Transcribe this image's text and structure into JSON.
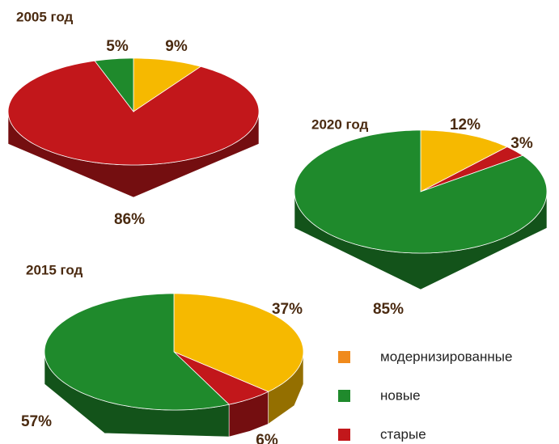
{
  "chart_data": [
    {
      "type": "pie",
      "title": "2005 год",
      "values": [
        9,
        5,
        86
      ],
      "value_labels": [
        "9%",
        "5%",
        "86%"
      ],
      "colors": [
        "#f6b900",
        "#1f8a2c",
        "#c2171b"
      ]
    },
    {
      "type": "pie",
      "title": "2020 год",
      "values": [
        12,
        85,
        3
      ],
      "value_labels": [
        "12%",
        "85%",
        "3%"
      ],
      "colors": [
        "#f6b900",
        "#1f8a2c",
        "#c2171b"
      ]
    },
    {
      "type": "pie",
      "title": "2015 год",
      "values": [
        37,
        57,
        6
      ],
      "value_labels": [
        "37%",
        "57%",
        "6%"
      ],
      "colors": [
        "#f6b900",
        "#1f8a2c",
        "#c2171b"
      ]
    }
  ],
  "legend": {
    "labels": [
      "модернизированные",
      "новые",
      "старые"
    ],
    "colors": [
      "#f08a1c",
      "#1f8a2c",
      "#c2171b"
    ]
  }
}
